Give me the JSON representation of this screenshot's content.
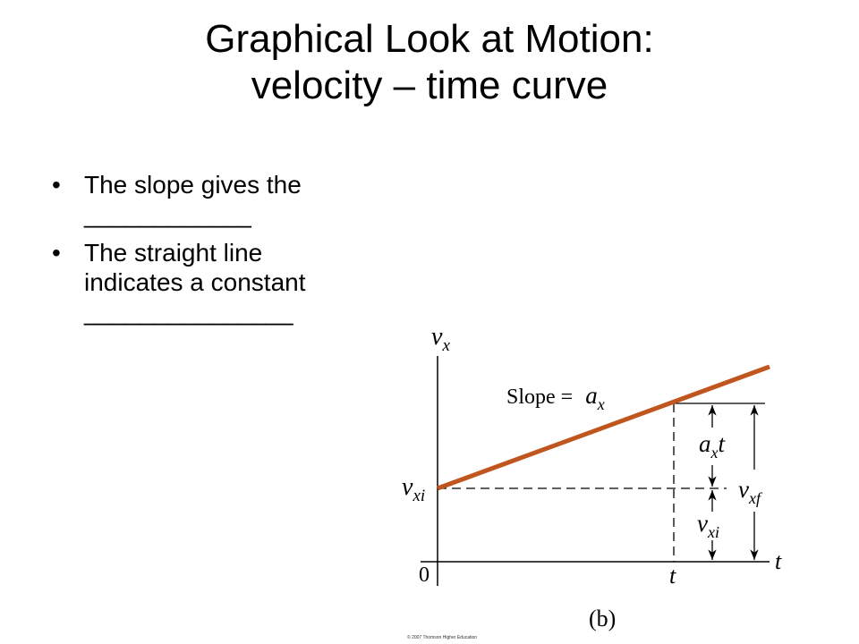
{
  "slide": {
    "title_line1": "Graphical Look at Motion:",
    "title_line2": "velocity – time curve",
    "bullets": [
      {
        "line1": "The slope gives the",
        "line2": "____________"
      },
      {
        "line1": "The straight line",
        "line2": "indicates a constant",
        "line3": "_______________"
      }
    ],
    "bullet_glyph": "•"
  },
  "diagram": {
    "y_axis_label_var": "v",
    "y_axis_label_sub": "x",
    "x_axis_label": "t",
    "origin_label": "0",
    "t_tick_label": "t",
    "intercept_label_var": "v",
    "intercept_label_sub": "xi",
    "slope_text": "Slope = ",
    "slope_var": "a",
    "slope_sub": "x",
    "axt_label_var": "a",
    "axt_label_sub": "x",
    "axt_label_t": "t",
    "vxi_label_var": "v",
    "vxi_label_sub": "xi",
    "vxf_label_var": "v",
    "vxf_label_sub": "xf",
    "panel_label": "(b)",
    "line_color": "#c0561e",
    "copyright": "© 2007 Thomson Higher Education"
  }
}
